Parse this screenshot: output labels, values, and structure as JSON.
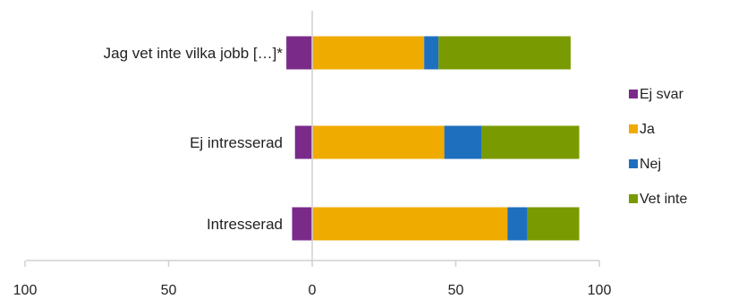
{
  "chart_data": {
    "type": "bar",
    "orientation": "horizontal",
    "stacked": "diverging",
    "title": "",
    "xlabel": "",
    "ylabel": "",
    "categories": [
      "Jag vet inte vilka jobb […]*",
      "Ej intresserad",
      "Intresserad"
    ],
    "series": [
      {
        "name": "Ej svar",
        "color": "#7a2b8a",
        "direction": "negative",
        "values": [
          9,
          6,
          7
        ]
      },
      {
        "name": "Ja",
        "color": "#f0ab00",
        "direction": "positive",
        "values": [
          39,
          46,
          68
        ]
      },
      {
        "name": "Nej",
        "color": "#1f6fbf",
        "direction": "positive",
        "values": [
          5,
          13,
          7
        ]
      },
      {
        "name": "Vet inte",
        "color": "#7a9a01",
        "direction": "positive",
        "values": [
          46,
          34,
          18
        ]
      }
    ],
    "xlim": [
      -100,
      100
    ],
    "xticks": [
      -100,
      -50,
      0,
      50,
      100
    ],
    "xtick_labels": [
      "100",
      "50",
      "0",
      "50",
      "100"
    ],
    "grid": false,
    "legend_position": "right"
  }
}
